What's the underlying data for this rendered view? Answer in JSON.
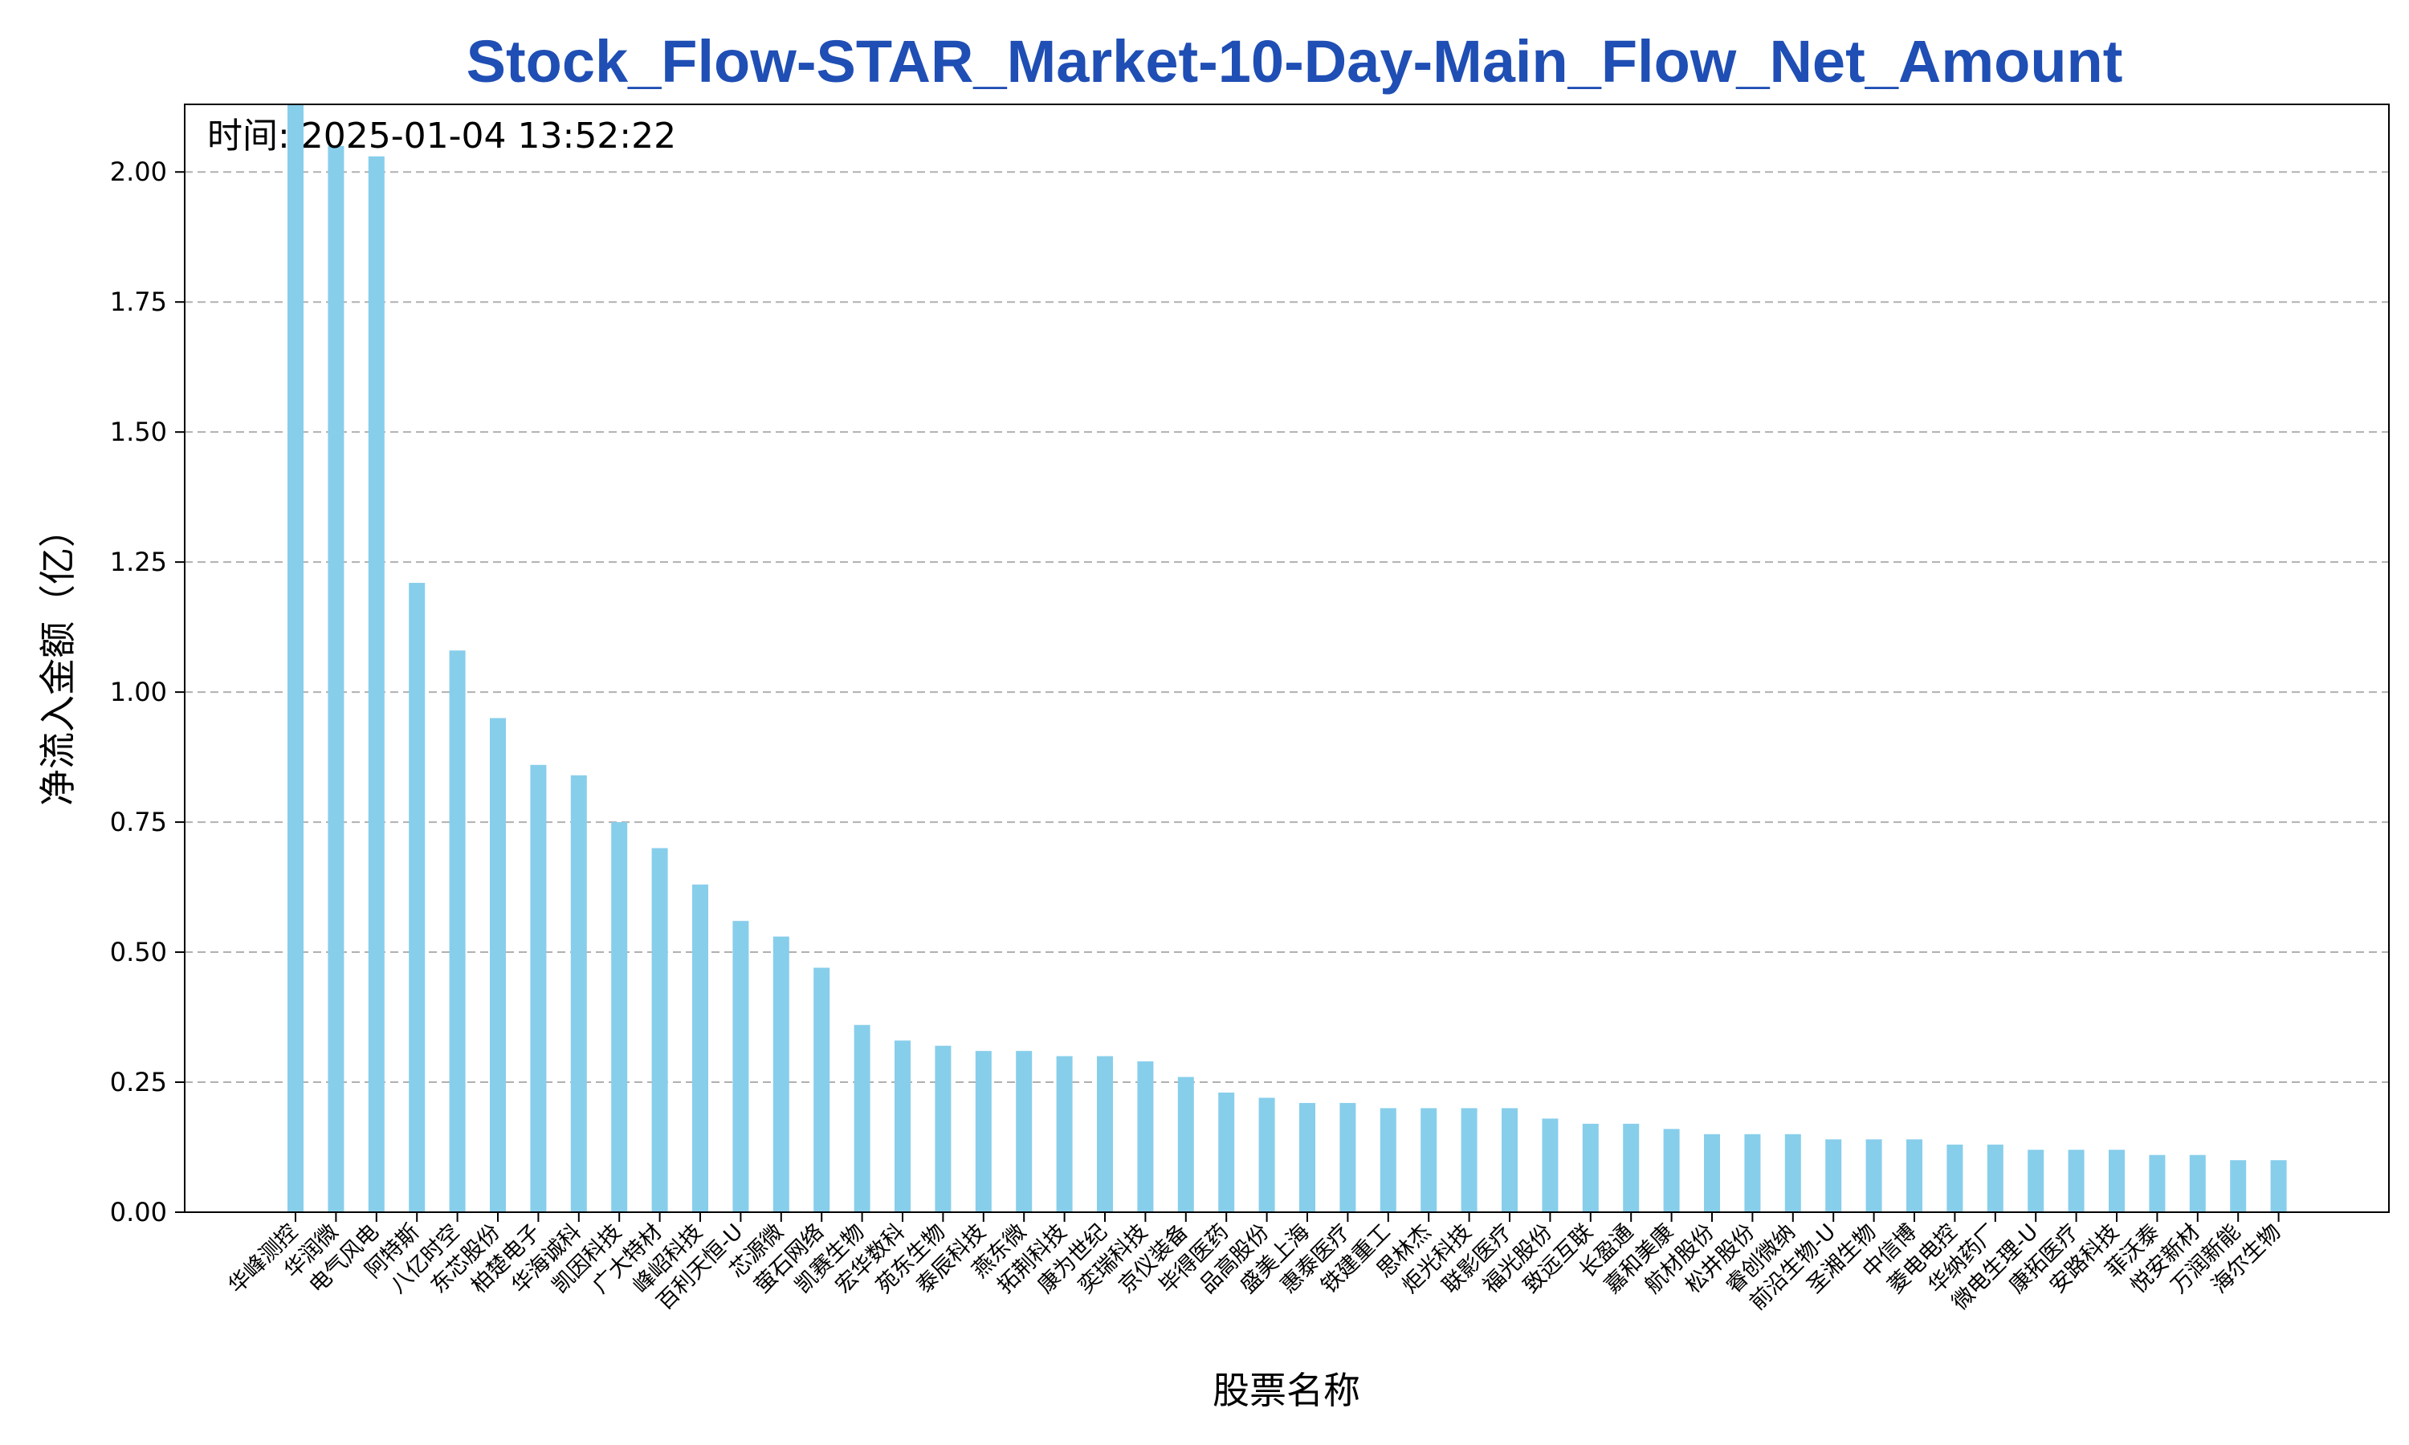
{
  "colors": {
    "bar": "#87CEEB",
    "title": "#1f4eb4",
    "grid": "#b0b0b0",
    "axis": "#000000"
  },
  "chart_data": {
    "type": "bar",
    "title": "Stock_Flow-STAR_Market-10-Day-Main_Flow_Net_Amount",
    "timestamp": "时间: 2025-01-04 13:52:22",
    "xlabel": "股票名称",
    "ylabel": "净流入金额（亿）",
    "ylim": [
      0,
      2.13
    ],
    "yticks": [
      "0.00",
      "0.25",
      "0.50",
      "0.75",
      "1.00",
      "1.25",
      "1.50",
      "1.75",
      "2.00"
    ],
    "grid": "y-dashed",
    "categories": [
      "华峰测控",
      "华润微",
      "电气风电",
      "阿特斯",
      "八亿时空",
      "东芯股份",
      "柏楚电子",
      "华海诚科",
      "凯因科技",
      "广大特材",
      "峰岹科技",
      "百利天恒-U",
      "芯源微",
      "萤石网络",
      "凯赛生物",
      "宏华数科",
      "苑东生物",
      "泰辰科技",
      "燕东微",
      "拓荆科技",
      "康为世纪",
      "奕瑞科技",
      "京仪装备",
      "毕得医药",
      "品高股份",
      "盛美上海",
      "惠泰医疗",
      "铁建重工",
      "思林杰",
      "炬光科技",
      "联影医疗",
      "福光股份",
      "致远互联",
      "长盈通",
      "嘉和美康",
      "航材股份",
      "松井股份",
      "睿创微纳",
      "前沿生物-U",
      "圣湘生物",
      "中信博",
      "菱电电控",
      "华纳药厂",
      "微电生理-U",
      "康拓医疗",
      "安路科技",
      "菲沃泰",
      "悦安新材",
      "万润新能",
      "海尔生物"
    ],
    "values": [
      2.13,
      2.05,
      2.03,
      1.21,
      1.08,
      0.95,
      0.86,
      0.84,
      0.75,
      0.7,
      0.63,
      0.56,
      0.53,
      0.47,
      0.36,
      0.33,
      0.32,
      0.31,
      0.31,
      0.3,
      0.3,
      0.29,
      0.26,
      0.23,
      0.22,
      0.21,
      0.21,
      0.2,
      0.2,
      0.2,
      0.2,
      0.18,
      0.17,
      0.17,
      0.16,
      0.15,
      0.15,
      0.15,
      0.14,
      0.14,
      0.14,
      0.13,
      0.13,
      0.12,
      0.12,
      0.12,
      0.11,
      0.11,
      0.1,
      0.1
    ]
  }
}
